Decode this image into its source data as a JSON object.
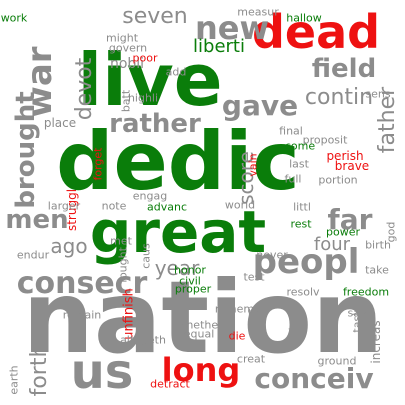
{
  "palette": {
    "gray": "#8c8c8c",
    "green": "#0a7d0a",
    "red": "#ee1111"
  },
  "words": [
    {
      "text": "nation",
      "color": "gray"
    },
    {
      "text": "dedic",
      "color": "green"
    },
    {
      "text": "live",
      "color": "green"
    },
    {
      "text": "great",
      "color": "green"
    },
    {
      "text": "dead",
      "color": "red"
    },
    {
      "text": "us",
      "color": "gray"
    },
    {
      "text": "peopl",
      "color": "gray"
    },
    {
      "text": "conceiv",
      "color": "gray"
    },
    {
      "text": "consecr",
      "color": "gray"
    },
    {
      "text": "long",
      "color": "red"
    },
    {
      "text": "war",
      "color": "gray"
    },
    {
      "text": "new",
      "color": "gray"
    },
    {
      "text": "rather",
      "color": "gray"
    },
    {
      "text": "field",
      "color": "gray"
    },
    {
      "text": "gave",
      "color": "gray"
    },
    {
      "text": "far",
      "color": "gray"
    },
    {
      "text": "men",
      "color": "gray"
    },
    {
      "text": "devot",
      "color": "gray"
    },
    {
      "text": "brought",
      "color": "gray"
    },
    {
      "text": "seven",
      "color": "gray"
    },
    {
      "text": "score",
      "color": "gray"
    },
    {
      "text": "father",
      "color": "gray"
    },
    {
      "text": "forth",
      "color": "gray"
    },
    {
      "text": "year",
      "color": "gray"
    },
    {
      "text": "four",
      "color": "gray"
    },
    {
      "text": "ago",
      "color": "gray"
    },
    {
      "text": "contin",
      "color": "gray"
    },
    {
      "text": "liberti",
      "color": "green"
    },
    {
      "text": "work",
      "color": "green"
    },
    {
      "text": "struggl",
      "color": "red"
    },
    {
      "text": "measur",
      "color": "gray"
    },
    {
      "text": "hallow",
      "color": "green"
    },
    {
      "text": "might",
      "color": "gray"
    },
    {
      "text": "govern",
      "color": "gray"
    },
    {
      "text": "nobli",
      "color": "gray"
    },
    {
      "text": "poor",
      "color": "red"
    },
    {
      "text": "add",
      "color": "gray"
    },
    {
      "text": "batt",
      "color": "gray"
    },
    {
      "text": "highli",
      "color": "gray"
    },
    {
      "text": "sens",
      "color": "gray"
    },
    {
      "text": "place",
      "color": "gray"
    },
    {
      "text": "final",
      "color": "gray"
    },
    {
      "text": "proposit",
      "color": "gray"
    },
    {
      "text": "come",
      "color": "green"
    },
    {
      "text": "perish",
      "color": "red"
    },
    {
      "text": "brave",
      "color": "red"
    },
    {
      "text": "last",
      "color": "gray"
    },
    {
      "text": "portion",
      "color": "gray"
    },
    {
      "text": "full",
      "color": "gray"
    },
    {
      "text": "engag",
      "color": "gray"
    },
    {
      "text": "forget",
      "color": "red"
    },
    {
      "text": "vain",
      "color": "red"
    },
    {
      "text": "larger",
      "color": "gray"
    },
    {
      "text": "note",
      "color": "gray"
    },
    {
      "text": "advanc",
      "color": "green"
    },
    {
      "text": "world",
      "color": "gray"
    },
    {
      "text": "littl",
      "color": "gray"
    },
    {
      "text": "god",
      "color": "gray"
    },
    {
      "text": "rest",
      "color": "green"
    },
    {
      "text": "power",
      "color": "green"
    },
    {
      "text": "met",
      "color": "gray"
    },
    {
      "text": "caus",
      "color": "gray"
    },
    {
      "text": "birth",
      "color": "gray"
    },
    {
      "text": "endur",
      "color": "gray"
    },
    {
      "text": "fought",
      "color": "gray"
    },
    {
      "text": "never",
      "color": "gray"
    },
    {
      "text": "take",
      "color": "gray"
    },
    {
      "text": "honor",
      "color": "green"
    },
    {
      "text": "civil",
      "color": "green"
    },
    {
      "text": "proper",
      "color": "green"
    },
    {
      "text": "test",
      "color": "gray"
    },
    {
      "text": "resolv",
      "color": "gray"
    },
    {
      "text": "freedom",
      "color": "green"
    },
    {
      "text": "remain",
      "color": "gray"
    },
    {
      "text": "unfinish",
      "color": "red"
    },
    {
      "text": "thu",
      "color": "gray"
    },
    {
      "text": "say",
      "color": "gray"
    },
    {
      "text": "altogeth",
      "color": "gray"
    },
    {
      "text": "rememb",
      "color": "gray"
    },
    {
      "text": "task",
      "color": "gray"
    },
    {
      "text": "whether",
      "color": "gray"
    },
    {
      "text": "equal",
      "color": "gray"
    },
    {
      "text": "fit",
      "color": "gray"
    },
    {
      "text": "die",
      "color": "red"
    },
    {
      "text": "increas",
      "color": "gray"
    },
    {
      "text": "earth",
      "color": "gray"
    },
    {
      "text": "creat",
      "color": "gray"
    },
    {
      "text": "ground",
      "color": "gray"
    },
    {
      "text": "detract",
      "color": "red"
    }
  ]
}
